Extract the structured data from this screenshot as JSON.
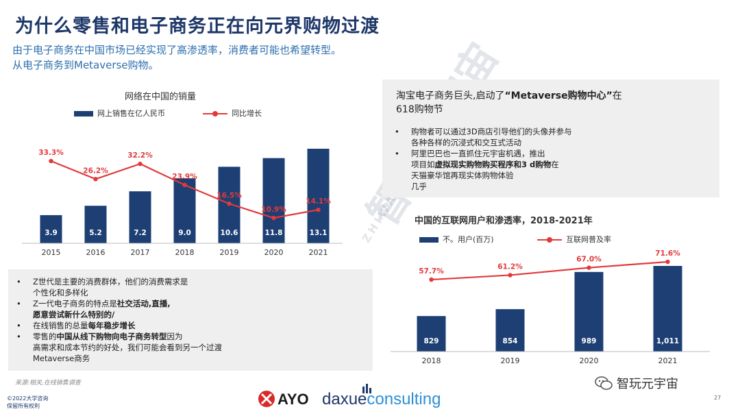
{
  "header": {
    "title": "为什么零售和电子商务正在向元界购物过渡",
    "subtitle_line1": "由于电子商务在中国市场已经实现了高渗透率，消费者可能也希望转型。",
    "subtitle_line2": "从电子商务到Metaverse购物。"
  },
  "left_chart": {
    "title": "网络在中国的销量",
    "legend_bar": "网上销售在亿人民币",
    "legend_line": "同比增长"
  },
  "right_chart": {
    "title": "中国的互联网用户和渗透率，2018-2021年",
    "legend_bar": "不。用户(百万)",
    "legend_line": "互联网普及率"
  },
  "chart_data": [
    {
      "type": "bar",
      "title": "网络在中国的销量",
      "categories": [
        "2015",
        "2016",
        "2017",
        "2018",
        "2019",
        "2020",
        "2021"
      ],
      "series": [
        {
          "name": "网上销售在亿人民币",
          "type": "bar",
          "values": [
            3.9,
            5.2,
            7.2,
            9.0,
            10.6,
            11.8,
            13.1
          ],
          "labels": [
            "3.9",
            "5.2",
            "7.2",
            "9.0",
            "10.6",
            "11.8",
            "13.1"
          ]
        },
        {
          "name": "同比增长",
          "type": "line",
          "values": [
            33.3,
            26.2,
            32.2,
            23.9,
            16.5,
            10.9,
            14.1
          ],
          "labels": [
            "33.3%",
            "26.2%",
            "32.2%",
            "23.9%",
            "16.5%",
            "10.9%",
            "14.1%"
          ]
        }
      ],
      "colors": {
        "bar": "#1d3f73",
        "line": "#e23a3a"
      }
    },
    {
      "type": "bar",
      "title": "中国的互联网用户和渗透率，2018-2021年",
      "categories": [
        "2018",
        "2019",
        "2020",
        "2021"
      ],
      "series": [
        {
          "name": "不。用户(百万)",
          "type": "bar",
          "values": [
            829,
            854,
            989,
            1011
          ],
          "labels": [
            "829",
            "854",
            "989",
            "1,011"
          ]
        },
        {
          "name": "互联网普及率",
          "type": "line",
          "values": [
            57.7,
            61.2,
            67.0,
            71.6
          ],
          "labels": [
            "57.7%",
            "61.2%",
            "67.0%",
            "71.6%"
          ]
        }
      ],
      "colors": {
        "bar": "#1d3f73",
        "line": "#e23a3a"
      }
    }
  ],
  "right_box": {
    "heading_a": "淘宝电子商务巨头,启动了",
    "heading_b": "“Metaverse购物中心”",
    "heading_c": "在",
    "heading_d": "618购物节",
    "b1_line1": "购物者可以通过3D商店引导他们的头像并参与",
    "b1_line2": "各种各样的沉浸式和交互式活动",
    "b2_line1": "阿里巴巴也一直抓住元宇宙机遇，推出",
    "b2_line2a": "项目如",
    "b2_line2b": "虚拟现实购物购买程序和3 d购物",
    "b2_line2c": "在",
    "b2_line3": "天猫豪华馆再现实体购物体验",
    "b2_line4": "几乎"
  },
  "left_box": {
    "b1_line1": "Z世代是主要的消费群体，他们的消费需求是",
    "b1_line2": "个性化和多样化",
    "b2_line1a": "Z一代电子商务的特点是",
    "b2_line1b": "社交活动,直播,",
    "b2_line2": "愿意尝试新什么特别的/",
    "b3_a": "在线销售的总量",
    "b3_b": "每年稳步增长",
    "b4_line1a": "零售的",
    "b4_line1b": "中国从线下购物向电子商务转型",
    "b4_line1c": "因为",
    "b4_line2": "高需求和成本节约的好处，我们可能会看到另一个过渡",
    "b4_line3": "Metaverse商务"
  },
  "footer": {
    "source": "来源:相关,在线销售调查",
    "copyright_line1": "©2022大学咨询",
    "copyright_line2": "保留所有权利",
    "page_number": "27",
    "logo_ayo": "AYO",
    "logo_daxue_a": "daxue",
    "logo_daxue_b": "consulting",
    "wechat_label": "智玩元宇宙",
    "watermark": "智玩元宇宙",
    "watermark_latin": "ZHIWANG METAVERSE"
  }
}
